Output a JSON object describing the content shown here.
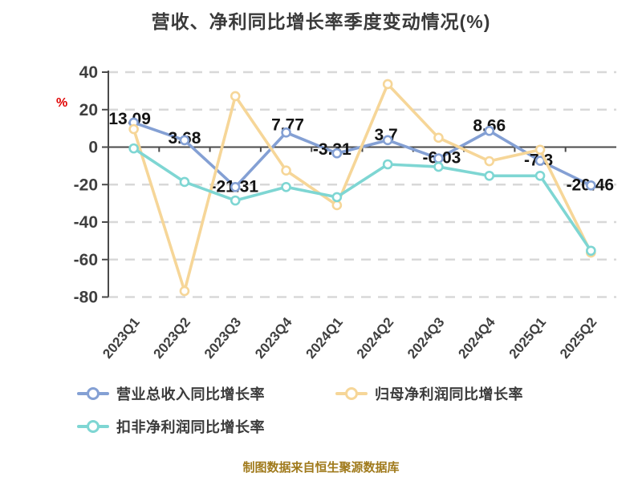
{
  "title": "营收、净利同比增长率季度变动情况(%)",
  "y_axis_unit_label": "%",
  "footer": "制图数据来自恒生聚源数据库",
  "colors": {
    "revenue_series": "#84a0d4",
    "net_profit_series": "#f6d698",
    "non_recurring_series": "#7ed6d3",
    "grid_line": "#d8d8d8",
    "axis_line": "#4a4a4a",
    "tick_text": "#3f3f3f",
    "data_label_text": "#141414",
    "unit_label_red": "#e00000",
    "title_text": "#3a3a3a",
    "footer_text": "#a07a1c",
    "marker_fill": "#ffffff"
  },
  "chart_data": {
    "type": "line",
    "title": "营收、净利同比增长率季度变动情况(%)",
    "xlabel": "",
    "ylabel": "%",
    "ylim": [
      -80,
      40
    ],
    "yticks": [
      40,
      20,
      0,
      -20,
      -40,
      -60,
      -80
    ],
    "grid": "horizontal dashed gridlines, solid zero axis",
    "legend_position": "bottom-left, two rows",
    "categories": [
      "2023Q1",
      "2023Q2",
      "2023Q3",
      "2023Q4",
      "2024Q1",
      "2024Q2",
      "2024Q3",
      "2024Q4",
      "2025Q1",
      "2025Q2"
    ],
    "series": [
      {
        "name": "营业总收入同比增长率",
        "color": "#84a0d4",
        "values": [
          13.09,
          3.68,
          -21.31,
          7.77,
          -3.31,
          3.7,
          -6.03,
          8.66,
          -7.3,
          -20.46
        ],
        "point_labels": [
          "13.09",
          "3.68",
          "-21.31",
          "7.77",
          "-3.31",
          "3.7",
          "-6.03",
          "8.66",
          "-7.3",
          "-20.46"
        ]
      },
      {
        "name": "归母净利润同比增长率",
        "color": "#f6d698",
        "values": [
          9.6,
          -76.8,
          27.2,
          -12.5,
          -31.0,
          33.6,
          5.0,
          -7.5,
          -1.4,
          -56.3
        ],
        "point_labels": []
      },
      {
        "name": "扣非净利润同比增长率",
        "color": "#7ed6d3",
        "values": [
          -0.7,
          -18.6,
          -28.5,
          -21.3,
          -26.7,
          -9.2,
          -10.5,
          -15.3,
          -15.3,
          -55.3
        ],
        "point_labels": []
      }
    ]
  }
}
